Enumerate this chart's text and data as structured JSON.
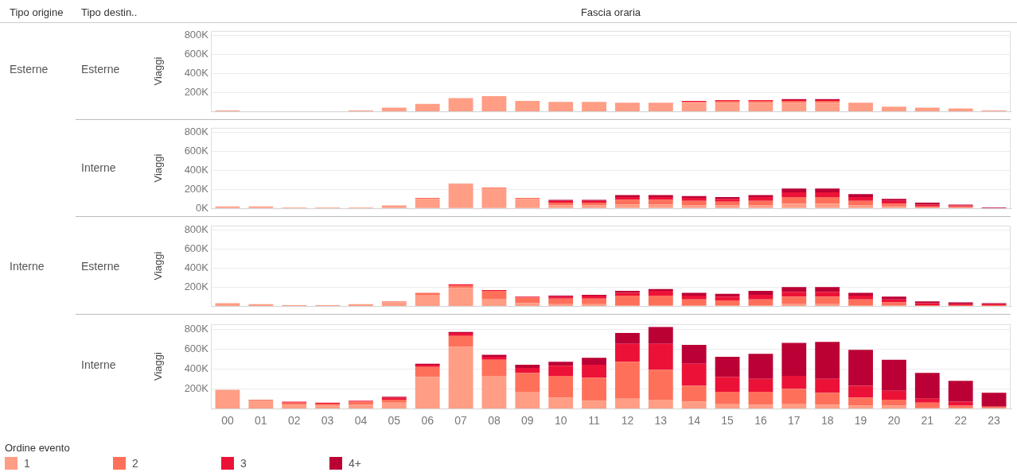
{
  "chart_data": [
    {
      "type": "other",
      "annotations": [
        "Tipo origine",
        "Tipo destin..",
        "Esterne",
        "Esterne",
        "Interne",
        "Interne",
        "Esterne",
        "Interne"
      ]
    },
    {
      "type": "bar",
      "stacked": true,
      "xlabel": "Fascia oraria",
      "ylabel": "Viaggi",
      "tick_labels": "y",
      "grid": "y",
      "categories": [
        "00",
        "01",
        "02",
        "03",
        "04",
        "05",
        "06",
        "07",
        "08",
        "09",
        "10",
        "11",
        "12",
        "13",
        "14",
        "15",
        "16",
        "17",
        "18",
        "19",
        "20",
        "21",
        "22",
        "23"
      ],
      "ylim": [
        0,
        850000
      ],
      "yticks": [
        {
          "value": 200000,
          "label": "200K"
        },
        {
          "value": 400000,
          "label": "400K"
        },
        {
          "value": 600000,
          "label": "600K"
        },
        {
          "value": 800000,
          "label": "800K"
        }
      ],
      "series": [
        {
          "color": "#ff9d85",
          "values": [
            10000,
            0,
            0,
            0,
            10000,
            40000,
            80000,
            140000,
            160000,
            110000,
            100000,
            100000,
            80000,
            80000,
            90000,
            90000,
            90000,
            90000,
            90000,
            80000,
            50000,
            40000,
            30000,
            10000
          ]
        },
        {
          "color": "#ff705a",
          "values": [
            0,
            0,
            0,
            0,
            0,
            0,
            0,
            0,
            0,
            0,
            0,
            0,
            10000,
            10000,
            10000,
            20000,
            20000,
            20000,
            20000,
            10000,
            0,
            0,
            0,
            0
          ]
        },
        {
          "color": "#ec1237",
          "values": [
            0,
            0,
            0,
            0,
            0,
            0,
            0,
            0,
            0,
            0,
            0,
            0,
            0,
            0,
            10000,
            10000,
            10000,
            10000,
            10000,
            0,
            0,
            0,
            0,
            0
          ]
        },
        {
          "color": "#bb0035",
          "values": [
            0,
            0,
            0,
            0,
            0,
            0,
            0,
            0,
            0,
            0,
            0,
            0,
            0,
            0,
            0,
            0,
            0,
            10000,
            10000,
            0,
            0,
            0,
            0,
            0
          ]
        }
      ]
    },
    {
      "type": "bar",
      "stacked": true,
      "ylabel": "Viaggi",
      "tick_labels": "y",
      "grid": "y",
      "categories": [
        "00",
        "01",
        "02",
        "03",
        "04",
        "05",
        "06",
        "07",
        "08",
        "09",
        "10",
        "11",
        "12",
        "13",
        "14",
        "15",
        "16",
        "17",
        "18",
        "19",
        "20",
        "21",
        "22",
        "23"
      ],
      "ylim": [
        0,
        850000
      ],
      "yticks": [
        {
          "value": 0,
          "label": "0K"
        },
        {
          "value": 200000,
          "label": "200K"
        },
        {
          "value": 400000,
          "label": "400K"
        },
        {
          "value": 600000,
          "label": "600K"
        },
        {
          "value": 800000,
          "label": "800K"
        }
      ],
      "series": [
        {
          "color": "#ff9d85",
          "values": [
            20000,
            20000,
            10000,
            10000,
            10000,
            30000,
            100000,
            250000,
            210000,
            100000,
            30000,
            30000,
            40000,
            40000,
            30000,
            30000,
            30000,
            50000,
            50000,
            30000,
            20000,
            10000,
            10000,
            0
          ]
        },
        {
          "color": "#ff705a",
          "values": [
            0,
            0,
            0,
            0,
            0,
            0,
            10000,
            10000,
            10000,
            10000,
            30000,
            30000,
            50000,
            50000,
            50000,
            40000,
            50000,
            70000,
            70000,
            50000,
            30000,
            10000,
            10000,
            0
          ]
        },
        {
          "color": "#ec1237",
          "values": [
            0,
            0,
            0,
            0,
            0,
            0,
            0,
            0,
            0,
            0,
            20000,
            20000,
            30000,
            30000,
            30000,
            30000,
            40000,
            50000,
            50000,
            40000,
            30000,
            20000,
            10000,
            0
          ]
        },
        {
          "color": "#bb0035",
          "values": [
            0,
            0,
            0,
            0,
            0,
            0,
            0,
            0,
            0,
            0,
            10000,
            10000,
            20000,
            20000,
            20000,
            20000,
            20000,
            40000,
            40000,
            30000,
            20000,
            20000,
            10000,
            10000
          ]
        }
      ]
    },
    {
      "type": "bar",
      "stacked": true,
      "ylabel": "Viaggi",
      "tick_labels": "y",
      "grid": "y",
      "categories": [
        "00",
        "01",
        "02",
        "03",
        "04",
        "05",
        "06",
        "07",
        "08",
        "09",
        "10",
        "11",
        "12",
        "13",
        "14",
        "15",
        "16",
        "17",
        "18",
        "19",
        "20",
        "21",
        "22",
        "23"
      ],
      "ylim": [
        0,
        850000
      ],
      "yticks": [
        {
          "value": 200000,
          "label": "200K"
        },
        {
          "value": 400000,
          "label": "400K"
        },
        {
          "value": 600000,
          "label": "600K"
        },
        {
          "value": 800000,
          "label": "800K"
        }
      ],
      "series": [
        {
          "color": "#ff9d85",
          "values": [
            30000,
            20000,
            10000,
            10000,
            20000,
            40000,
            120000,
            190000,
            70000,
            30000,
            20000,
            20000,
            10000,
            10000,
            10000,
            10000,
            10000,
            20000,
            20000,
            10000,
            10000,
            0,
            0,
            0
          ]
        },
        {
          "color": "#ff705a",
          "values": [
            0,
            0,
            0,
            0,
            0,
            10000,
            20000,
            30000,
            90000,
            60000,
            60000,
            60000,
            100000,
            100000,
            60000,
            50000,
            60000,
            80000,
            80000,
            60000,
            30000,
            10000,
            10000,
            10000
          ]
        },
        {
          "color": "#ec1237",
          "values": [
            0,
            0,
            0,
            0,
            0,
            0,
            0,
            10000,
            10000,
            10000,
            20000,
            30000,
            30000,
            50000,
            40000,
            40000,
            50000,
            50000,
            50000,
            40000,
            30000,
            20000,
            10000,
            10000
          ]
        },
        {
          "color": "#bb0035",
          "values": [
            0,
            0,
            0,
            0,
            0,
            0,
            0,
            0,
            0,
            0,
            10000,
            10000,
            20000,
            20000,
            30000,
            30000,
            40000,
            50000,
            50000,
            30000,
            30000,
            20000,
            20000,
            10000
          ]
        }
      ]
    },
    {
      "type": "bar",
      "stacked": true,
      "ylabel": "Viaggi",
      "grid": "y",
      "legend": "bottom",
      "legend_title": "Ordine evento",
      "categories": [
        "00",
        "01",
        "02",
        "03",
        "04",
        "05",
        "06",
        "07",
        "08",
        "09",
        "10",
        "11",
        "12",
        "13",
        "14",
        "15",
        "16",
        "17",
        "18",
        "19",
        "20",
        "21",
        "22",
        "23"
      ],
      "ylim": [
        0,
        850000
      ],
      "yticks": [
        {
          "value": 200000,
          "label": "200K"
        },
        {
          "value": 400000,
          "label": "400K"
        },
        {
          "value": 600000,
          "label": "600K"
        },
        {
          "value": 800000,
          "label": "800K"
        }
      ],
      "series": [
        {
          "name": "1",
          "color": "#ff9d85",
          "values": [
            190000,
            80000,
            40000,
            30000,
            40000,
            60000,
            320000,
            620000,
            330000,
            170000,
            110000,
            80000,
            100000,
            90000,
            70000,
            50000,
            40000,
            50000,
            40000,
            30000,
            30000,
            10000,
            10000,
            10000
          ]
        },
        {
          "name": "2",
          "color": "#ff705a",
          "values": [
            0,
            10000,
            20000,
            20000,
            30000,
            30000,
            100000,
            110000,
            160000,
            190000,
            220000,
            230000,
            370000,
            300000,
            160000,
            120000,
            130000,
            150000,
            120000,
            80000,
            60000,
            50000,
            20000,
            10000
          ]
        },
        {
          "name": "3",
          "color": "#ec1237",
          "values": [
            0,
            0,
            10000,
            10000,
            10000,
            20000,
            20000,
            30000,
            30000,
            50000,
            100000,
            130000,
            180000,
            260000,
            220000,
            150000,
            130000,
            130000,
            140000,
            120000,
            90000,
            40000,
            40000,
            0
          ]
        },
        {
          "name": "4+",
          "color": "#bb0035",
          "values": [
            0,
            0,
            0,
            0,
            0,
            10000,
            10000,
            10000,
            20000,
            30000,
            40000,
            70000,
            110000,
            170000,
            190000,
            200000,
            250000,
            330000,
            370000,
            360000,
            310000,
            260000,
            210000,
            140000
          ]
        }
      ]
    }
  ]
}
